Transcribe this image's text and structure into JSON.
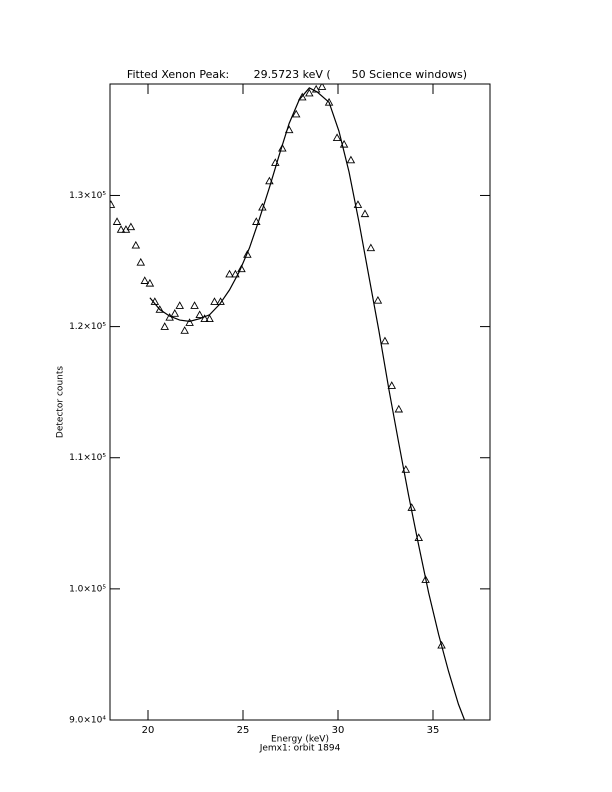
{
  "chart_data": {
    "type": "scatter",
    "title": "Fitted Xenon Peak:       29.5723 keV (      50 Science windows)",
    "xlabel": "Energy (keV)",
    "subtitle": "Jemx1: orbit 1894",
    "ylabel": "Detector counts",
    "xlim": [
      18,
      38
    ],
    "ylim": [
      90000,
      138500
    ],
    "xticks": [
      20,
      25,
      30,
      35
    ],
    "yticks": [
      {
        "value": 90000,
        "label": "9.0×10⁴"
      },
      {
        "value": 100000,
        "label": "1.0×10⁵"
      },
      {
        "value": 110000,
        "label": "1.1×10⁵"
      },
      {
        "value": 120000,
        "label": "1.2×10⁵"
      },
      {
        "value": 130000,
        "label": "1.3×10⁵"
      }
    ],
    "series": [
      {
        "marker": "triangle",
        "color": "#000000",
        "x": [
          18.05,
          18.37,
          18.58,
          18.84,
          19.1,
          19.36,
          19.62,
          19.83,
          20.1,
          20.36,
          20.62,
          20.88,
          21.14,
          21.41,
          21.67,
          21.93,
          22.19,
          22.45,
          22.72,
          22.98,
          23.24,
          23.5,
          23.82,
          24.29,
          24.6,
          24.92,
          25.23,
          25.7,
          26.02,
          26.39,
          26.7,
          27.07,
          27.43,
          27.8,
          28.12,
          28.49,
          28.85,
          29.16,
          29.53,
          29.95,
          30.32,
          30.68,
          31.05,
          31.42,
          31.73,
          32.1,
          32.47,
          32.83,
          33.2,
          33.57,
          33.88,
          34.25,
          34.61,
          35.45
        ],
        "values": [
          129300,
          128000,
          127400,
          127400,
          127600,
          126200,
          124900,
          123500,
          123300,
          121900,
          121300,
          120000,
          120700,
          121000,
          121600,
          119700,
          120300,
          121600,
          120900,
          120600,
          120600,
          121900,
          121900,
          124000,
          124000,
          124400,
          125500,
          128000,
          129100,
          131100,
          132500,
          133600,
          135000,
          136200,
          137500,
          137800,
          138100,
          138300,
          137100,
          134400,
          133900,
          132700,
          129300,
          128600,
          126000,
          122000,
          118900,
          115500,
          113700,
          109100,
          106200,
          103900,
          100700,
          95700
        ]
      },
      {
        "marker": "line",
        "color": "#000000",
        "x": [
          20.1,
          20.62,
          21.14,
          21.67,
          22.19,
          22.72,
          23.24,
          23.77,
          24.29,
          24.81,
          25.34,
          25.86,
          26.39,
          26.91,
          27.43,
          27.96,
          28.49,
          28.9,
          29.53,
          30.05,
          30.58,
          31.1,
          31.63,
          32.15,
          32.68,
          33.2,
          33.72,
          34.25,
          34.77,
          35.3,
          35.82,
          36.34,
          36.66
        ],
        "values": [
          122200,
          121300,
          120800,
          120500,
          120400,
          120600,
          120900,
          121700,
          122800,
          124200,
          126000,
          128200,
          130600,
          133100,
          135500,
          137300,
          138200,
          137900,
          137100,
          134900,
          131800,
          128000,
          123800,
          119700,
          115200,
          111100,
          107100,
          103300,
          99700,
          96500,
          93700,
          91200,
          90000
        ]
      }
    ]
  }
}
